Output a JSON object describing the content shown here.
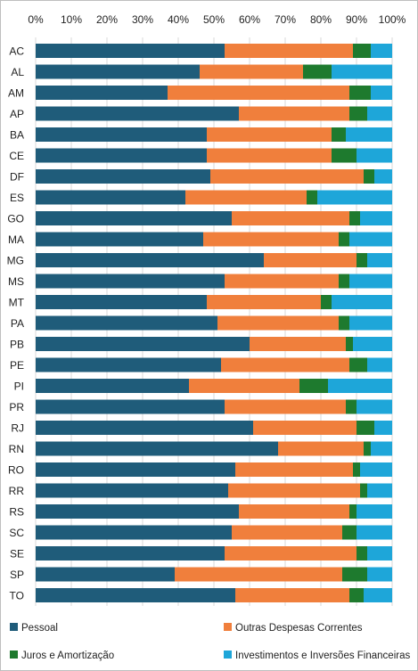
{
  "chart_data": {
    "type": "bar",
    "orientation": "horizontal",
    "stacked": "percent",
    "xlim": [
      0,
      100
    ],
    "x_ticks": [
      "0%",
      "10%",
      "20%",
      "30%",
      "40%",
      "50%",
      "60%",
      "70%",
      "80%",
      "90%",
      "100%"
    ],
    "categories": [
      "AC",
      "AL",
      "AM",
      "AP",
      "BA",
      "CE",
      "DF",
      "ES",
      "GO",
      "MA",
      "MG",
      "MS",
      "MT",
      "PA",
      "PB",
      "PE",
      "PI",
      "PR",
      "RJ",
      "RN",
      "RO",
      "RR",
      "RS",
      "SC",
      "SE",
      "SP",
      "TO"
    ],
    "series": [
      {
        "name": "Pessoal",
        "color": "#1f5c7a",
        "values": [
          53,
          46,
          37,
          57,
          48,
          48,
          49,
          42,
          55,
          47,
          64,
          53,
          48,
          51,
          60,
          52,
          43,
          53,
          61,
          68,
          56,
          54,
          57,
          55,
          53,
          39,
          56
        ]
      },
      {
        "name": "Outras Despesas Correntes",
        "color": "#f07f3c",
        "values": [
          36,
          29,
          51,
          31,
          35,
          35,
          43,
          34,
          33,
          38,
          26,
          32,
          32,
          34,
          27,
          36,
          31,
          34,
          29,
          24,
          33,
          37,
          31,
          31,
          37,
          47,
          32
        ]
      },
      {
        "name": "Juros e Amortização",
        "color": "#1e7a2e",
        "values": [
          5,
          8,
          6,
          5,
          4,
          7,
          3,
          3,
          3,
          3,
          3,
          3,
          3,
          3,
          2,
          5,
          8,
          3,
          5,
          2,
          2,
          2,
          2,
          4,
          3,
          7,
          4
        ]
      },
      {
        "name": "Investimentos e Inversões Financeiras",
        "color": "#1ea6d9",
        "values": [
          6,
          17,
          6,
          7,
          13,
          10,
          5,
          21,
          9,
          12,
          7,
          12,
          17,
          12,
          11,
          7,
          18,
          10,
          5,
          6,
          9,
          7,
          10,
          10,
          7,
          7,
          8
        ]
      }
    ],
    "grid": true,
    "legend_position": "bottom"
  }
}
